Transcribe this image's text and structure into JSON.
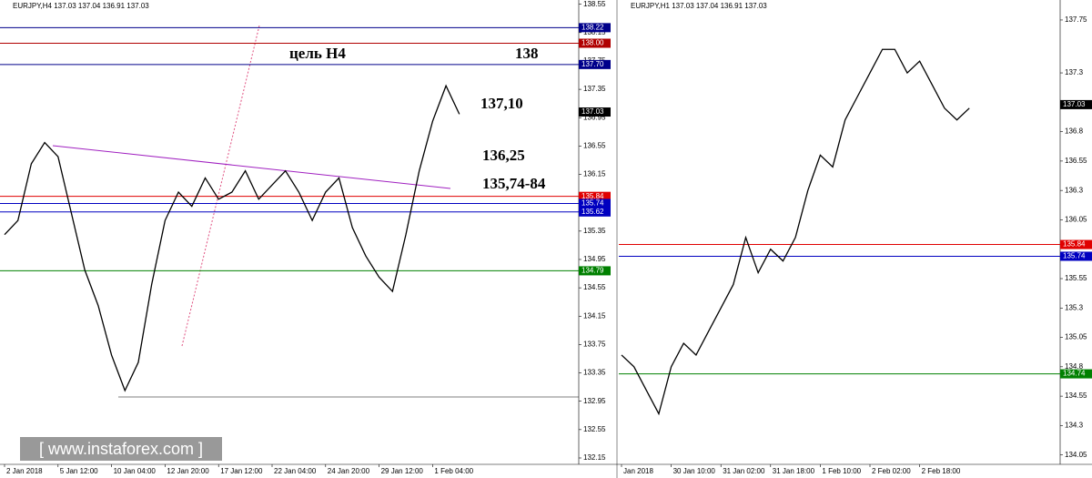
{
  "chart_data": [
    {
      "type": "line",
      "title": "EURJPY,H4  137.03 137.04 136.91 137.03",
      "categories": [
        "2 Jan 2018",
        null,
        null,
        null,
        "5 Jan 12:00",
        null,
        null,
        null,
        "10 Jan 04:00",
        null,
        null,
        null,
        "12 Jan 20:00",
        null,
        null,
        null,
        "17 Jan 12:00",
        null,
        null,
        null,
        "22 Jan 04:00",
        null,
        null,
        null,
        "24 Jan 20:00",
        null,
        null,
        null,
        "29 Jan 12:00",
        null,
        null,
        null,
        "1 Feb 04:00",
        null,
        null
      ],
      "series": [
        {
          "name": "EURJPY",
          "color": "#000000",
          "values": [
            135.3,
            135.5,
            136.3,
            136.6,
            136.4,
            135.6,
            134.8,
            134.3,
            133.6,
            133.1,
            133.5,
            134.6,
            135.5,
            135.9,
            135.7,
            136.1,
            135.8,
            135.9,
            136.2,
            135.8,
            136.0,
            136.2,
            135.9,
            135.5,
            135.9,
            136.1,
            135.4,
            135.0,
            134.7,
            134.5,
            135.3,
            136.2,
            136.9,
            137.4,
            137.0
          ]
        }
      ],
      "ylim": [
        132.06,
        138.61
      ],
      "yticks": [
        {
          "value": 138.55,
          "label": "138.55"
        },
        {
          "value": 138.15,
          "label": "138.15"
        },
        137.75,
        137.35,
        136.95,
        136.55,
        136.15,
        135.75,
        135.35,
        134.95,
        134.55,
        134.15,
        133.75,
        133.35,
        132.95,
        132.55,
        132.15
      ],
      "levels": [
        {
          "value": 138.22,
          "label": "138.22",
          "color": "#00008b"
        },
        {
          "value": 138.0,
          "label": "138.00",
          "color": "#b00000"
        },
        {
          "value": 137.7,
          "label": "137.70",
          "color": "#00008b"
        },
        {
          "value": 135.84,
          "label": "135.84",
          "color": "#e00000"
        },
        {
          "value": 135.74,
          "label": "135.74",
          "color": "#0000c0"
        },
        {
          "value": 135.62,
          "label": "135.62",
          "color": "#0000c0"
        },
        {
          "value": 134.79,
          "label": "134.79",
          "color": "#008000"
        }
      ],
      "last_price": {
        "value": 137.03,
        "label": "137.03"
      },
      "annotations": [
        "цель H4",
        "138",
        "137,10",
        "136,25",
        "135,74-84"
      ]
    },
    {
      "type": "line",
      "title": "EURJPY,H1  137.03 137.04 136.91 137.03",
      "categories": [
        "Jan 2018",
        null,
        null,
        null,
        "30 Jan 10:00",
        null,
        null,
        null,
        "31 Jan 02:00",
        null,
        null,
        null,
        "31 Jan 18:00",
        null,
        null,
        null,
        "1 Feb 10:00",
        null,
        null,
        null,
        "2 Feb 02:00",
        null,
        null,
        null,
        "2 Feb 18:00",
        null,
        null,
        null,
        null
      ],
      "series": [
        {
          "name": "EURJPY",
          "color": "#000000",
          "values": [
            134.9,
            134.8,
            134.6,
            134.4,
            134.8,
            135.0,
            134.9,
            135.1,
            135.3,
            135.5,
            135.9,
            135.6,
            135.8,
            135.7,
            135.9,
            136.3,
            136.6,
            136.5,
            136.9,
            137.1,
            137.3,
            137.5,
            137.5,
            137.3,
            137.4,
            137.2,
            137.0,
            136.9,
            137.0
          ]
        }
      ],
      "ylim": [
        133.97,
        137.92
      ],
      "yticks": [
        137.75,
        137.3,
        136.8,
        136.55,
        136.3,
        136.05,
        135.55,
        135.3,
        135.05,
        134.8,
        134.55,
        134.3,
        134.05
      ],
      "levels": [
        {
          "value": 135.84,
          "label": "135.84",
          "color": "#e00000"
        },
        {
          "value": 135.74,
          "label": "135.74",
          "color": "#0000c0"
        },
        {
          "value": 134.74,
          "label": "134.74",
          "color": "#008000"
        }
      ],
      "last_price": {
        "value": 137.03,
        "label": "137.03"
      }
    }
  ],
  "watermark": "[ www.instaforex.com ]"
}
